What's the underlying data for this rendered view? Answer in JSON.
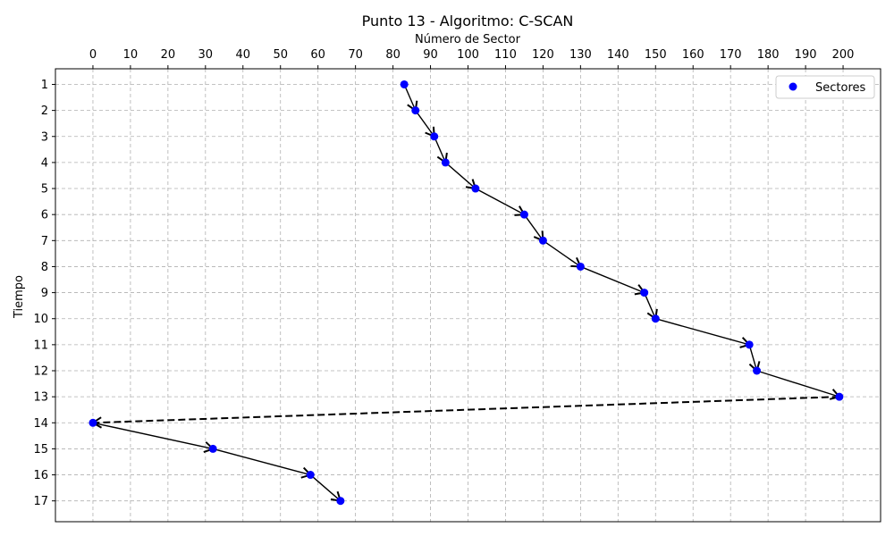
{
  "chart_data": {
    "type": "scatter",
    "title": "Punto 13 - Algoritmo: C-SCAN",
    "xlabel": "Número de Sector",
    "ylabel": "Tiempo",
    "xaxis_position": "top",
    "yaxis_inverted": true,
    "xlim": [
      -10,
      210
    ],
    "ylim": [
      17.8,
      0.4
    ],
    "xticks": [
      0,
      10,
      20,
      30,
      40,
      50,
      60,
      70,
      80,
      90,
      100,
      110,
      120,
      130,
      140,
      150,
      160,
      170,
      180,
      190,
      200
    ],
    "yticks": [
      1,
      2,
      3,
      4,
      5,
      6,
      7,
      8,
      9,
      10,
      11,
      12,
      13,
      14,
      15,
      16,
      17
    ],
    "grid": true,
    "legend": {
      "position": "top-right",
      "entries": [
        "Sectores"
      ]
    },
    "series": [
      {
        "name": "Sectores",
        "color": "#0000ff",
        "points": [
          {
            "x": 83,
            "y": 1
          },
          {
            "x": 86,
            "y": 2
          },
          {
            "x": 91,
            "y": 3
          },
          {
            "x": 94,
            "y": 4
          },
          {
            "x": 102,
            "y": 5
          },
          {
            "x": 115,
            "y": 6
          },
          {
            "x": 120,
            "y": 7
          },
          {
            "x": 130,
            "y": 8
          },
          {
            "x": 147,
            "y": 9
          },
          {
            "x": 150,
            "y": 10
          },
          {
            "x": 175,
            "y": 11
          },
          {
            "x": 177,
            "y": 12
          },
          {
            "x": 199,
            "y": 13
          },
          {
            "x": 0,
            "y": 14
          },
          {
            "x": 32,
            "y": 15
          },
          {
            "x": 58,
            "y": 16
          },
          {
            "x": 66,
            "y": 17
          }
        ]
      }
    ],
    "arrows": {
      "color": "#000000",
      "connect_points_in_order": true,
      "dashed_segments": [
        12
      ]
    }
  }
}
